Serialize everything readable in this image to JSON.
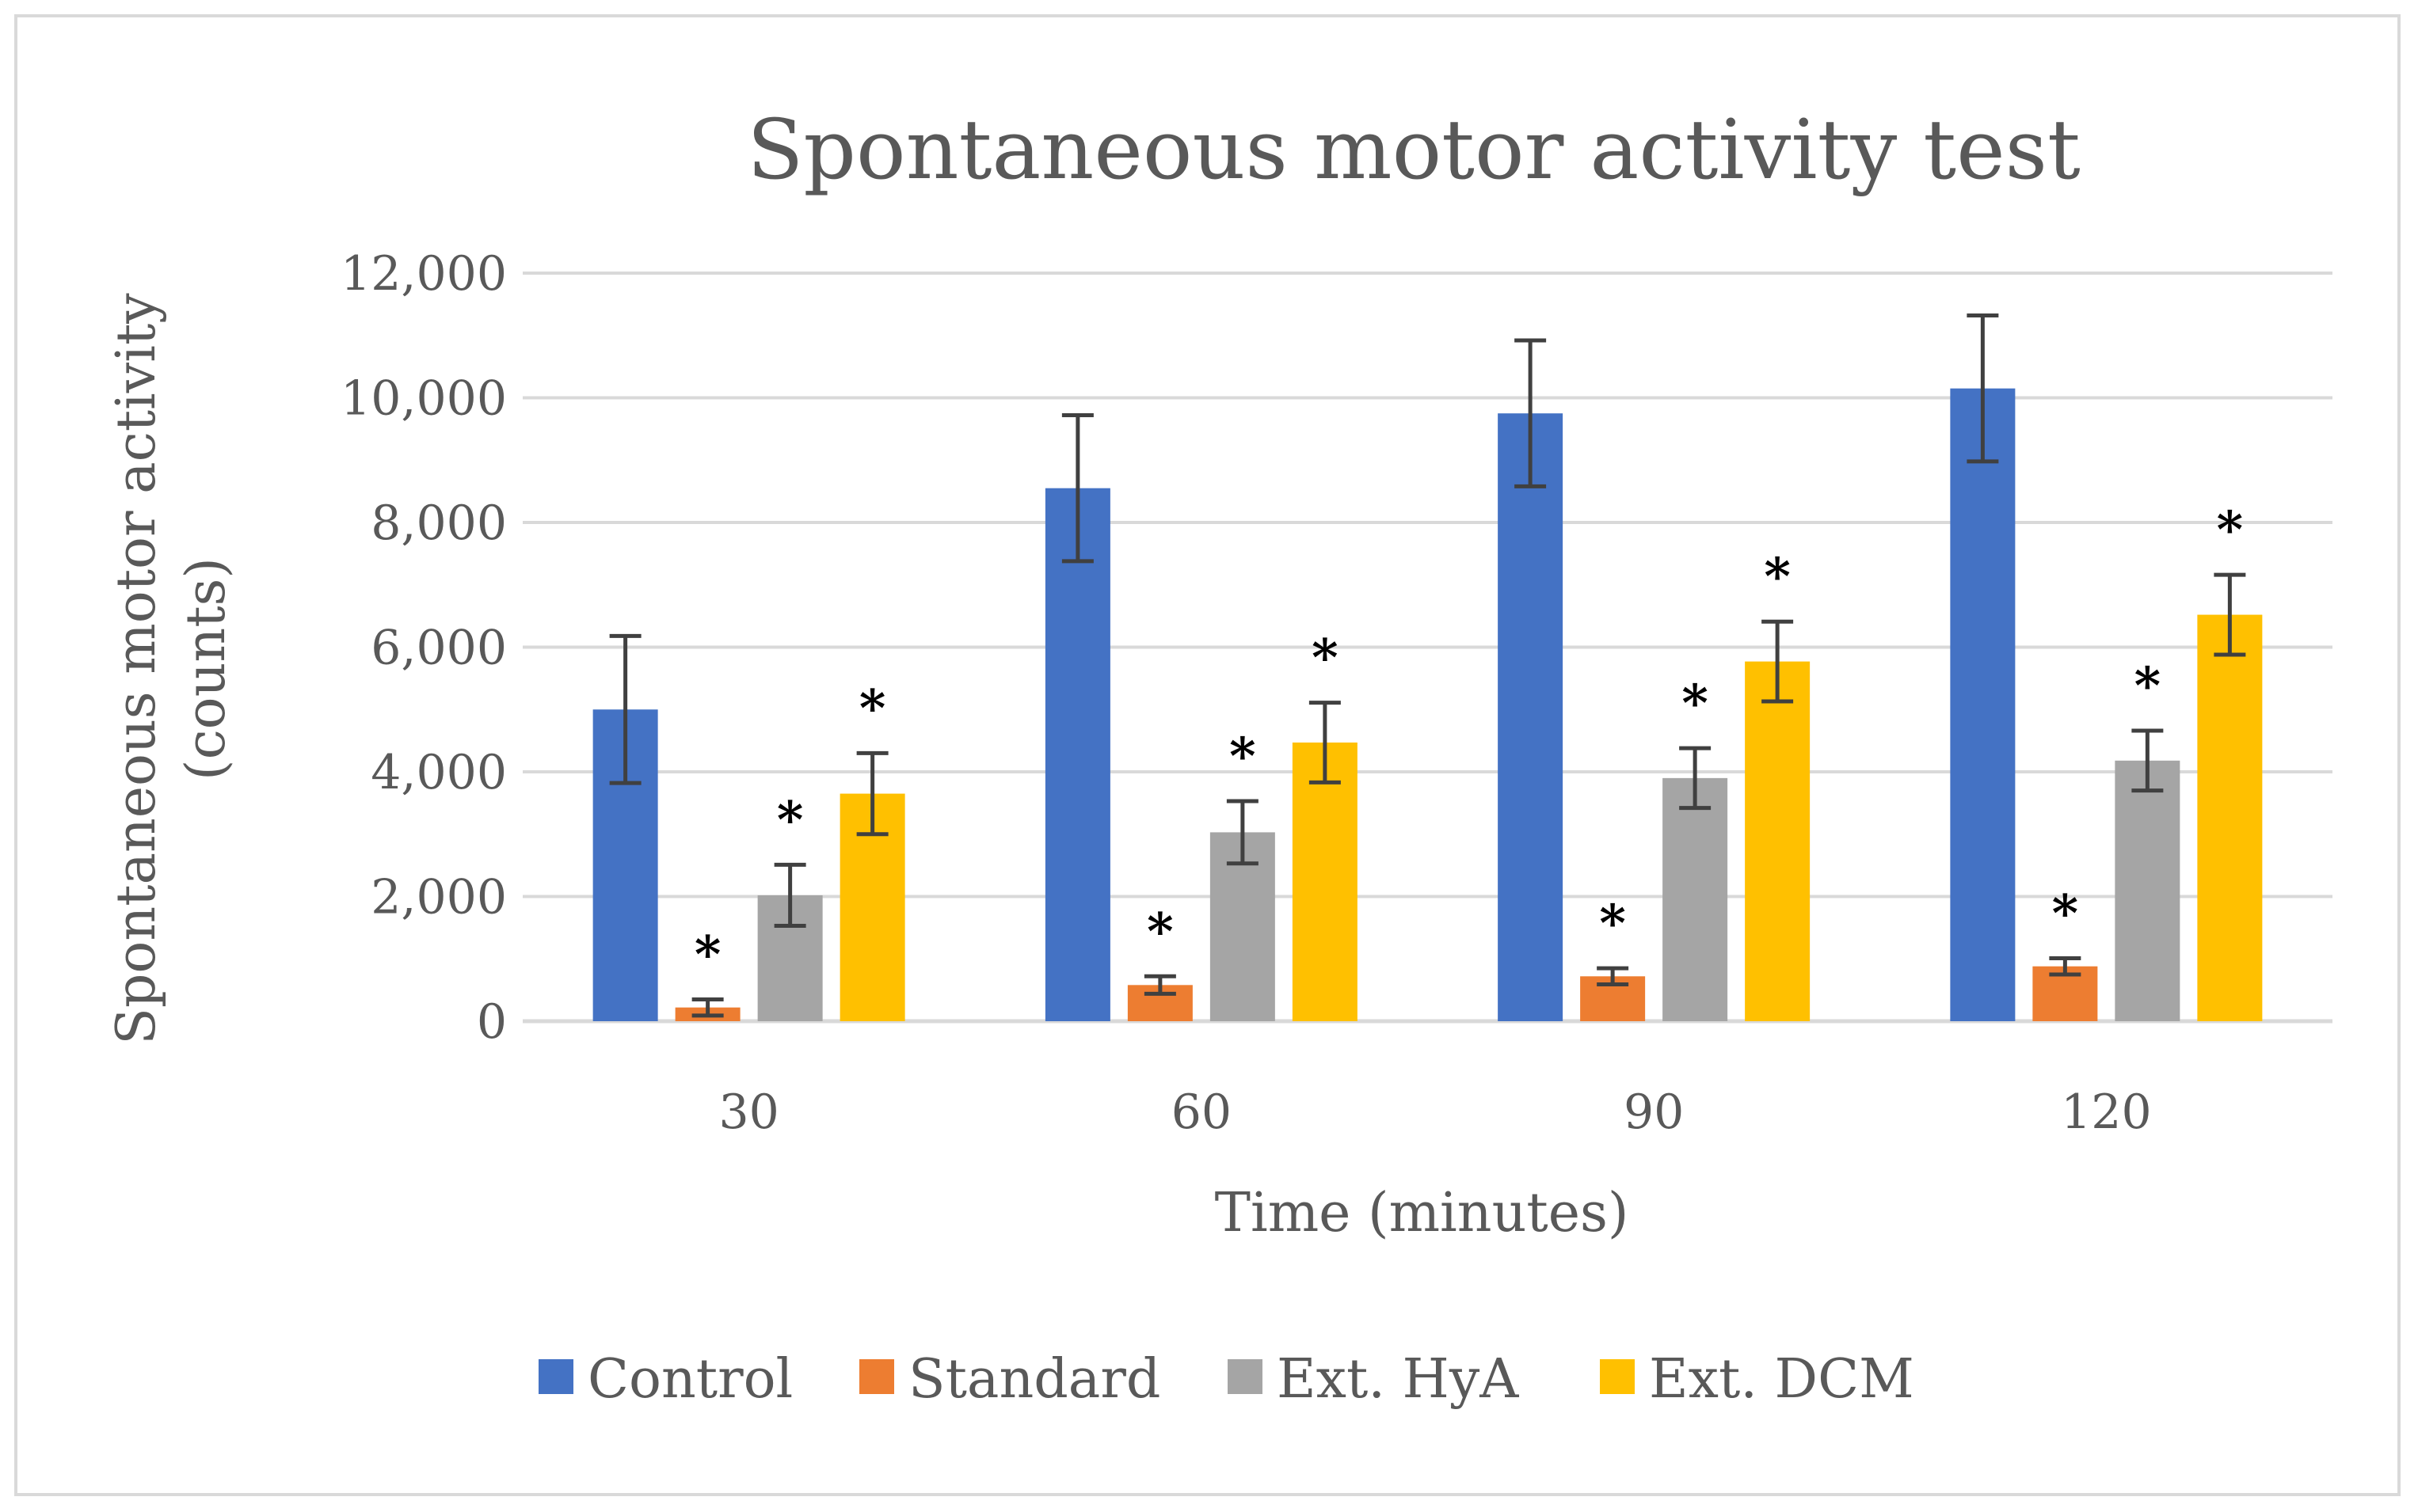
{
  "chart_data": {
    "type": "bar",
    "title": "Spontaneous motor activity test",
    "xlabel": "Time (minutes)",
    "ylabel_lines": [
      "Spontaneous motor activity",
      "(counts)"
    ],
    "categories": [
      "30",
      "60",
      "90",
      "120"
    ],
    "ylim": [
      0,
      12000
    ],
    "yticks": [
      0,
      2000,
      4000,
      6000,
      8000,
      10000,
      12000
    ],
    "ytick_labels": [
      "0",
      "2,000",
      "4,000",
      "6,000",
      "8,000",
      "10,000",
      "12,000"
    ],
    "grid": true,
    "legend_position": "bottom",
    "significance_marker": "*",
    "series": [
      {
        "name": "Control",
        "color": "#4472c4",
        "values": [
          5000,
          8550,
          9750,
          10150
        ],
        "errors": [
          1180,
          1170,
          1170,
          1170
        ],
        "significant": [
          false,
          false,
          false,
          false
        ]
      },
      {
        "name": "Standard",
        "color": "#ed7d31",
        "values": [
          220,
          580,
          720,
          880
        ],
        "errors": [
          130,
          140,
          130,
          130
        ],
        "significant": [
          true,
          true,
          true,
          true
        ]
      },
      {
        "name": "Ext. HyA",
        "color": "#a5a5a5",
        "values": [
          2020,
          3030,
          3900,
          4180
        ],
        "errors": [
          490,
          500,
          480,
          480
        ],
        "significant": [
          true,
          true,
          true,
          true
        ]
      },
      {
        "name": "Ext. DCM",
        "color": "#ffc000",
        "values": [
          3650,
          4470,
          5770,
          6520
        ],
        "errors": [
          650,
          640,
          640,
          640
        ],
        "significant": [
          true,
          true,
          true,
          true
        ]
      }
    ]
  }
}
